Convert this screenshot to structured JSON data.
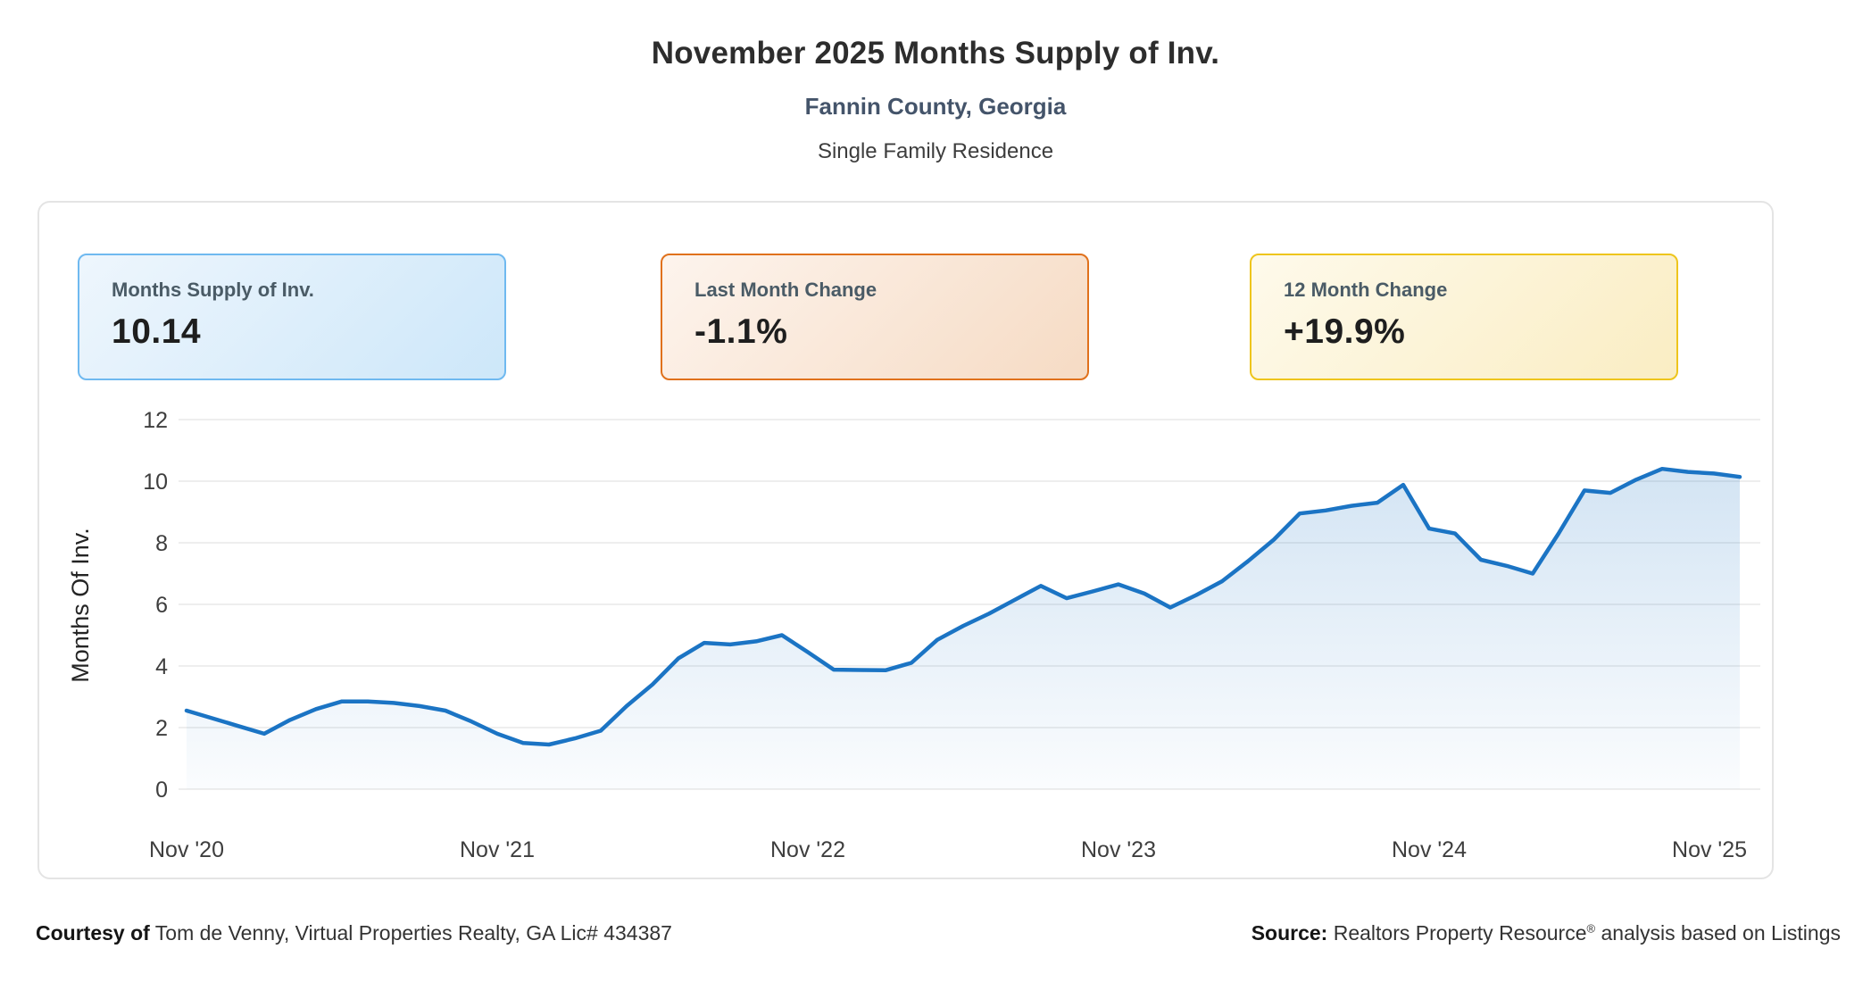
{
  "header": {
    "title": "November 2025 Months Supply of Inv.",
    "subtitle": "Fannin County, Georgia",
    "property_type": "Single Family Residence"
  },
  "stat_cards": [
    {
      "label": "Months Supply of Inv.",
      "value": "10.14",
      "border_color": "#6fb9f0",
      "bg_from": "#eef6fd",
      "bg_to": "#cde7f9"
    },
    {
      "label": "Last Month Change",
      "value": "-1.1%",
      "border_color": "#e0711c",
      "bg_from": "#fdf4ed",
      "bg_to": "#f6dbc4"
    },
    {
      "label": "12 Month Change",
      "value": "+19.9%",
      "border_color": "#eec51c",
      "bg_from": "#fefaeb",
      "bg_to": "#faedc3"
    }
  ],
  "chart_data": {
    "type": "area",
    "title": "November 2025 Months Supply of Inv.",
    "subtitle": "Fannin County, Georgia",
    "series_name": "Months Supply of Inv.",
    "xlabel": "",
    "ylabel": "Months Of Inv.",
    "ylim": [
      0,
      12
    ],
    "y_ticks": [
      0,
      2,
      4,
      6,
      8,
      10,
      12
    ],
    "grid": "horizontal",
    "legend": "none",
    "line_color": "#1b74c4",
    "area_fade_color": "#1b74c4",
    "x_ticks": [
      {
        "index": 0,
        "label": "Nov '20"
      },
      {
        "index": 12,
        "label": "Nov '21"
      },
      {
        "index": 24,
        "label": "Nov '22"
      },
      {
        "index": 36,
        "label": "Nov '23"
      },
      {
        "index": 48,
        "label": "Nov '24"
      },
      {
        "index": 60,
        "label": "Nov '25"
      }
    ],
    "categories": [
      "Nov '20",
      "Dec '20",
      "Jan '21",
      "Feb '21",
      "Mar '21",
      "Apr '21",
      "May '21",
      "Jun '21",
      "Jul '21",
      "Aug '21",
      "Sep '21",
      "Oct '21",
      "Nov '21",
      "Dec '21",
      "Jan '22",
      "Feb '22",
      "Mar '22",
      "Apr '22",
      "May '22",
      "Jun '22",
      "Jul '22",
      "Aug '22",
      "Sep '22",
      "Oct '22",
      "Nov '22",
      "Dec '22",
      "Jan '23",
      "Feb '23",
      "Mar '23",
      "Apr '23",
      "May '23",
      "Jun '23",
      "Jul '23",
      "Aug '23",
      "Sep '23",
      "Oct '23",
      "Nov '23",
      "Dec '23",
      "Jan '24",
      "Feb '24",
      "Mar '24",
      "Apr '24",
      "May '24",
      "Jun '24",
      "Jul '24",
      "Aug '24",
      "Sep '24",
      "Oct '24",
      "Nov '24",
      "Dec '24",
      "Jan '25",
      "Feb '25",
      "Mar '25",
      "Apr '25",
      "May '25",
      "Jun '25",
      "Jul '25",
      "Aug '25",
      "Sep '25",
      "Oct '25",
      "Nov '25"
    ],
    "values": [
      2.55,
      2.3,
      2.05,
      1.8,
      2.25,
      2.6,
      2.85,
      2.85,
      2.8,
      2.7,
      2.55,
      2.2,
      1.8,
      1.5,
      1.45,
      1.65,
      1.9,
      2.7,
      3.4,
      4.25,
      4.75,
      4.7,
      4.8,
      5.0,
      4.45,
      3.88,
      3.87,
      3.86,
      4.1,
      4.85,
      5.3,
      5.7,
      6.15,
      6.6,
      6.2,
      6.42,
      6.65,
      6.35,
      5.9,
      6.3,
      6.75,
      7.4,
      8.1,
      8.95,
      9.05,
      9.2,
      9.3,
      9.88,
      8.46,
      8.3,
      7.45,
      7.25,
      7.0,
      8.3,
      9.7,
      9.62,
      10.05,
      10.4,
      10.3,
      10.25,
      10.14
    ]
  },
  "footer": {
    "courtesy_label": "Courtesy of",
    "courtesy_text": " Tom de Venny, Virtual Properties Realty, GA Lic# 434387",
    "source_label": "Source:",
    "source_text_before": " Realtors Property Resource",
    "source_reg": "®",
    "source_text_after": " analysis based on Listings"
  }
}
